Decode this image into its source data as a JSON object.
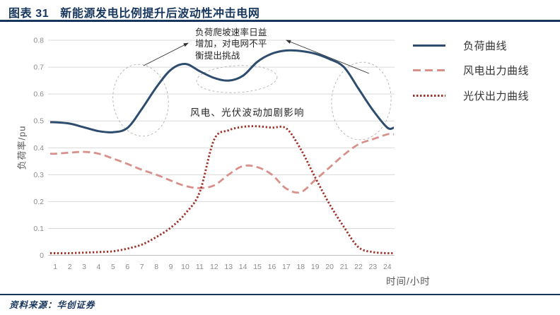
{
  "page": {
    "header": {
      "figure_label": "图表 31",
      "figure_title": "新能源发电比例提升后波动性冲击电网"
    },
    "footer": {
      "source_note": "资料来源：华创证券"
    },
    "colors": {
      "accent_navy": "#17365D",
      "grid_gray": "#D9D9D9",
      "tick_gray": "#8C8C8C"
    }
  },
  "chart_data": {
    "type": "line",
    "title": "",
    "xlabel": "时间/小时",
    "ylabel": "负荷率/pu",
    "x": [
      1,
      2,
      3,
      4,
      5,
      6,
      7,
      8,
      9,
      10,
      11,
      12,
      13,
      14,
      15,
      16,
      17,
      18,
      19,
      20,
      21,
      22,
      23,
      24
    ],
    "ylim": [
      0,
      0.8
    ],
    "ytick_interval": 0.1,
    "grid": true,
    "legend_position": "right",
    "series": [
      {
        "name": "负荷曲线",
        "line_style": "solid",
        "color": "#2E4D6E",
        "values": [
          0.495,
          0.49,
          0.476,
          0.462,
          0.458,
          0.474,
          0.545,
          0.625,
          0.69,
          0.712,
          0.685,
          0.66,
          0.65,
          0.668,
          0.72,
          0.75,
          0.762,
          0.76,
          0.75,
          0.73,
          0.7,
          0.62,
          0.54,
          0.475
        ]
      },
      {
        "name": "风电出力曲线",
        "line_style": "dashed",
        "color": "#D9908A",
        "values": [
          0.378,
          0.382,
          0.385,
          0.378,
          0.36,
          0.34,
          0.318,
          0.3,
          0.278,
          0.258,
          0.25,
          0.26,
          0.3,
          0.332,
          0.328,
          0.3,
          0.248,
          0.235,
          0.28,
          0.327,
          0.374,
          0.413,
          0.432,
          0.45
        ]
      },
      {
        "name": "光伏出力曲线",
        "line_style": "dotted",
        "color": "#9E322B",
        "values": [
          0.008,
          0.008,
          0.01,
          0.012,
          0.015,
          0.025,
          0.04,
          0.068,
          0.103,
          0.155,
          0.235,
          0.43,
          0.465,
          0.478,
          0.48,
          0.475,
          0.472,
          0.395,
          0.29,
          0.19,
          0.105,
          0.03,
          0.012,
          0.008
        ]
      }
    ],
    "annotations": [
      {
        "id": "ramp-note",
        "text": "负荷爬坡速率日益增加，对电网不平衡提出挑战"
      },
      {
        "id": "volatility-note",
        "text": "风电、光伏波动加剧影响"
      }
    ]
  }
}
